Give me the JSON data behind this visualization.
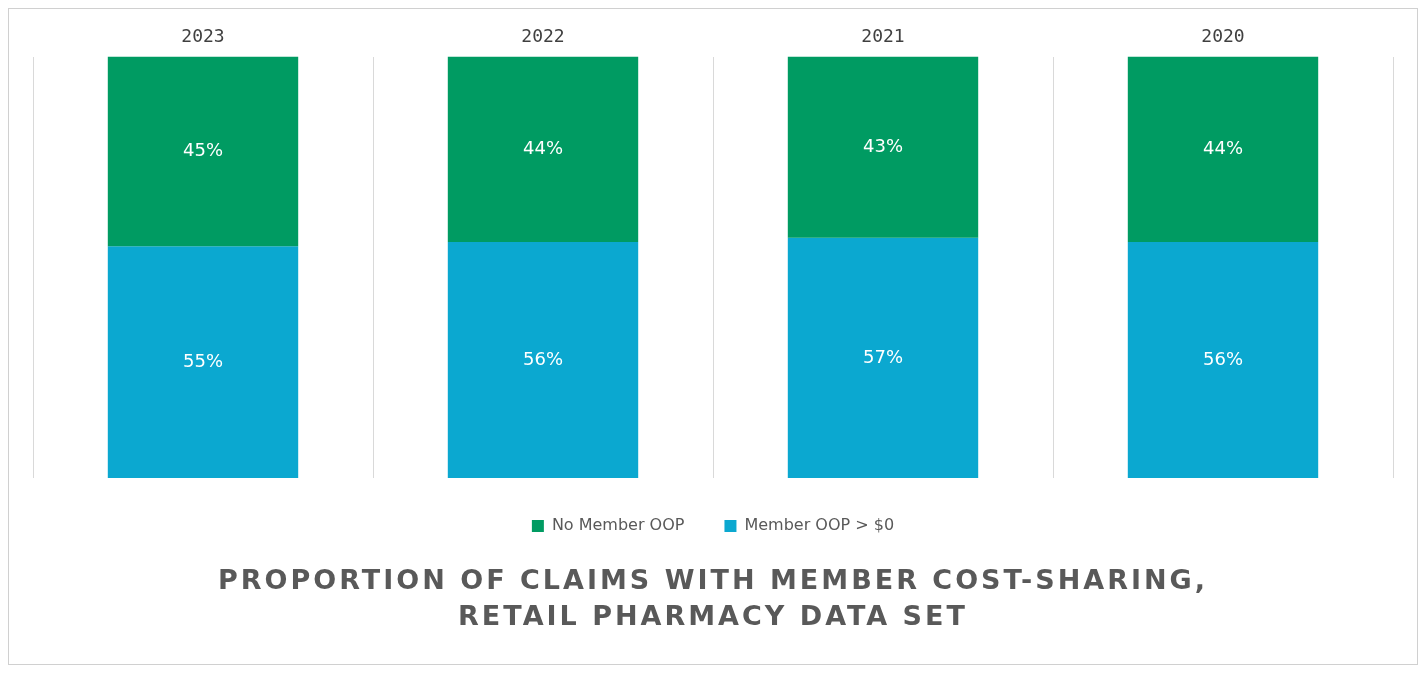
{
  "chart_data": {
    "type": "bar",
    "title": "PROPORTION OF CLAIMS WITH MEMBER COST-SHARING, RETAIL PHARMACY DATA SET",
    "categories": [
      "2023",
      "2022",
      "2021",
      "2020"
    ],
    "stacked": true,
    "series": [
      {
        "name": "No Member OOP",
        "color": "#009b62",
        "values": [
          45,
          44,
          43,
          44
        ],
        "value_labels": [
          "45%",
          "44%",
          "43%",
          "44%"
        ]
      },
      {
        "name": "Member OOP > $0",
        "color": "#0ba8d0",
        "values": [
          55,
          56,
          57,
          56
        ],
        "value_labels": [
          "55%",
          "56%",
          "57%",
          "56%"
        ]
      }
    ],
    "grid": "x",
    "legend": "bottom",
    "tick_labels": "x"
  }
}
